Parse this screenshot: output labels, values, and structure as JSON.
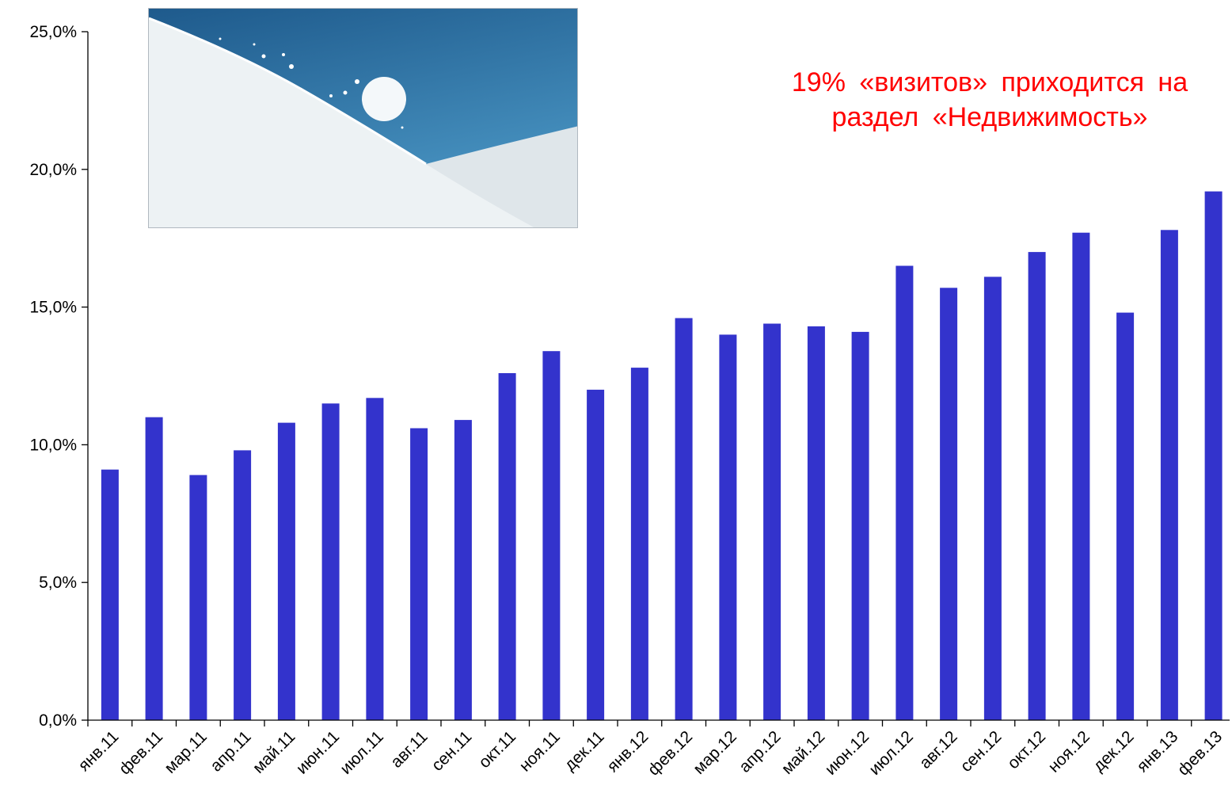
{
  "chart_data": {
    "type": "bar",
    "categories": [
      "янв.11",
      "фев.11",
      "мар.11",
      "апр.11",
      "май.11",
      "июн.11",
      "июл.11",
      "авг.11",
      "сен.11",
      "окт.11",
      "ноя.11",
      "дек.11",
      "янв.12",
      "фев.12",
      "мар.12",
      "апр.12",
      "май.12",
      "июн.12",
      "июл.12",
      "авг.12",
      "сен.12",
      "окт.12",
      "ноя.12",
      "дек.12",
      "янв.13",
      "фев.13"
    ],
    "values": [
      9.1,
      11.0,
      8.9,
      9.8,
      10.8,
      11.5,
      11.7,
      10.6,
      10.9,
      12.6,
      13.4,
      12.0,
      12.8,
      14.6,
      14.0,
      14.4,
      14.3,
      14.1,
      16.5,
      15.7,
      16.1,
      17.0,
      17.7,
      14.8,
      17.8,
      19.2
    ],
    "yticks": [
      "0,0%",
      "5,0%",
      "10,0%",
      "15,0%",
      "20,0%",
      "25,0%"
    ],
    "ylim": [
      0,
      25
    ],
    "bar_color": "#3333cc",
    "grid": false,
    "annotation": [
      "19% «визитов» приходится на",
      "раздел «Недвижимость»"
    ],
    "annotation_color": "#ff0000"
  }
}
